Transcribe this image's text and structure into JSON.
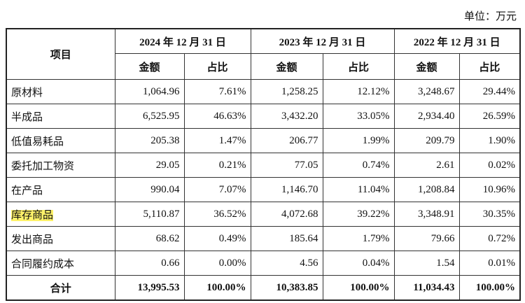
{
  "unit": "单位：万元",
  "table": {
    "header": {
      "item": "项目",
      "periods": [
        "2024 年 12 月 31 日",
        "2023 年 12 月 31 日",
        "2022 年 12 月 31 日"
      ],
      "columns": [
        "金额",
        "占比",
        "金额",
        "占比",
        "金额",
        "占比"
      ]
    },
    "rows": [
      [
        "原材料",
        "1,064.96",
        "7.61%",
        "1,258.25",
        "12.12%",
        "3,248.67",
        "29.44%"
      ],
      [
        "半成品",
        "6,525.95",
        "46.63%",
        "3,432.20",
        "33.05%",
        "2,934.40",
        "26.59%"
      ],
      [
        "低值易耗品",
        "205.38",
        "1.47%",
        "206.77",
        "1.99%",
        "209.79",
        "1.90%"
      ],
      [
        "委托加工物资",
        "29.05",
        "0.21%",
        "77.05",
        "0.74%",
        "2.61",
        "0.02%"
      ],
      [
        "在产品",
        "990.04",
        "7.07%",
        "1,146.70",
        "11.04%",
        "1,208.84",
        "10.96%"
      ],
      [
        "库存商品",
        "5,110.87",
        "36.52%",
        "4,072.68",
        "39.22%",
        "3,348.91",
        "30.35%"
      ],
      [
        "发出商品",
        "68.62",
        "0.49%",
        "185.64",
        "1.79%",
        "79.66",
        "0.72%"
      ],
      [
        "合同履约成本",
        "0.66",
        "0.00%",
        "4.56",
        "0.04%",
        "1.54",
        "0.01%"
      ]
    ],
    "total": [
      "合计",
      "13,995.53",
      "100.00%",
      "10,383.85",
      "100.00%",
      "11,034.43",
      "100.00%"
    ]
  }
}
